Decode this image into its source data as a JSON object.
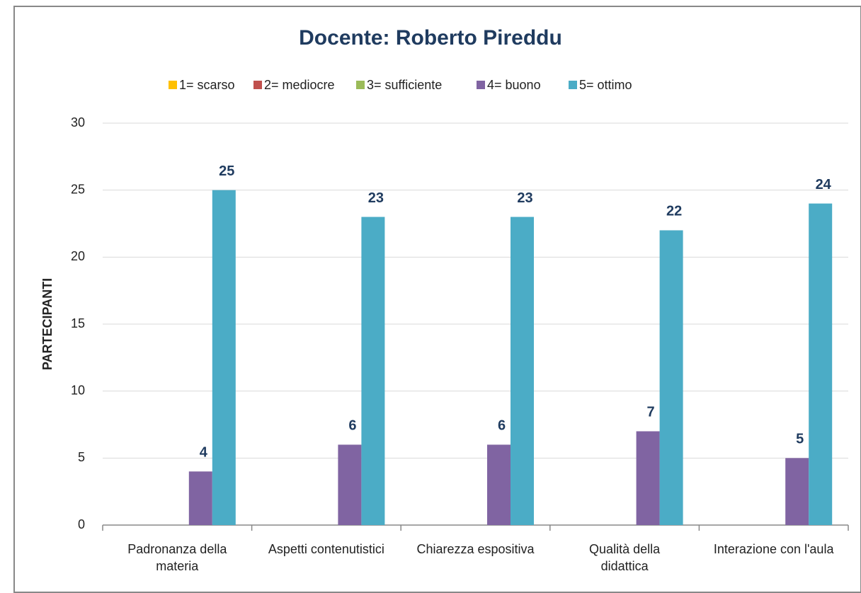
{
  "chart_data": {
    "type": "bar",
    "title": "Docente: Roberto Pireddu",
    "y_label": "PARTECIPANTI",
    "categories": [
      "Padronanza della materia",
      "Aspetti contenutistici",
      "Chiarezza espositiva",
      "Qualità della didattica",
      "Interazione con l'aula"
    ],
    "series": [
      {
        "name": "1= scarso",
        "color": "#ffc000",
        "values": [
          null,
          null,
          null,
          null,
          null
        ]
      },
      {
        "name": "2= mediocre",
        "color": "#c0504d",
        "values": [
          null,
          null,
          null,
          null,
          null
        ]
      },
      {
        "name": "3= sufficiente",
        "color": "#9bbb59",
        "values": [
          null,
          null,
          null,
          null,
          null
        ]
      },
      {
        "name": "4= buono",
        "color": "#8064a2",
        "values": [
          4,
          6,
          6,
          7,
          5
        ]
      },
      {
        "name": "5= ottimo",
        "color": "#4bacc6",
        "values": [
          25,
          23,
          23,
          22,
          24
        ]
      }
    ],
    "ylim": [
      0,
      30
    ],
    "yticks": [
      0,
      5,
      10,
      15,
      20,
      25,
      30
    ],
    "grid": true,
    "legend": "top"
  }
}
